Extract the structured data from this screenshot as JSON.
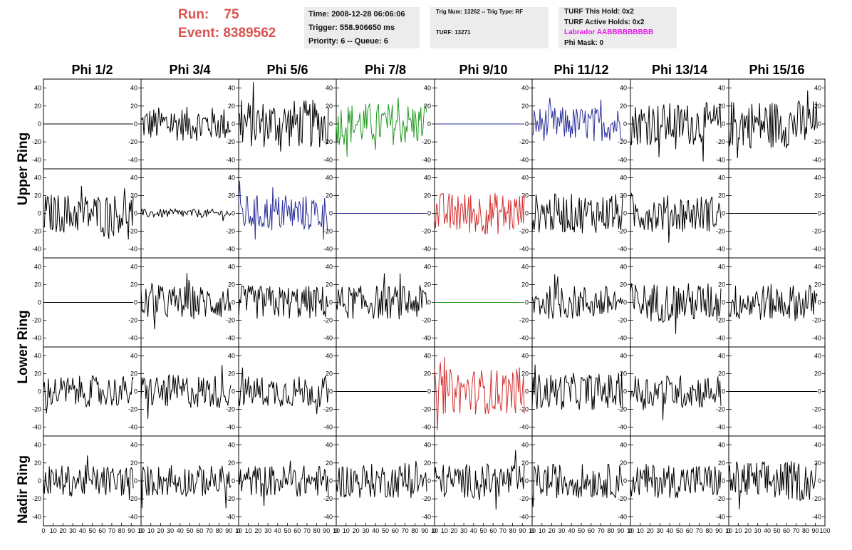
{
  "header": {
    "run_label": "Run:",
    "run_value": "75",
    "event_label": "Event:",
    "event_value": "8389562",
    "time": "Time: 2008-12-28 06:06:06",
    "trigger": "Trigger: 558.906650 ms",
    "priority": "Priority: 6 -- Queue: 6",
    "trig_num": "Trig Num: 13262 -- Trig Type: RF",
    "turf": "TURF: 13271",
    "turf_this_hold": "TURF This Hold: 0x2",
    "turf_active_holds": "TURF Active Holds: 0x2",
    "labrador": "Labrador AABBBBBBBBB",
    "phi_mask": "Phi Mask: 0"
  },
  "chart_data": {
    "type": "line",
    "columns": [
      "Phi 1/2",
      "Phi 3/4",
      "Phi 5/6",
      "Phi 7/8",
      "Phi 9/10",
      "Phi 11/12",
      "Phi 13/14",
      "Phi 15/16"
    ],
    "row_labels": [
      "Upper Ring",
      "Lower Ring",
      "Nadir Ring"
    ],
    "xlim": [
      0,
      100
    ],
    "ylim": [
      -50,
      50
    ],
    "x_ticks": [
      0,
      10,
      20,
      30,
      40,
      50,
      60,
      70,
      80,
      90,
      100
    ],
    "y_ticks": [
      -40,
      -20,
      0,
      20,
      40
    ],
    "x_tick_labels_first": "0 10 20 30 40 50 60 70 80 90 10",
    "x_tick_labels_last": "0 10 20 30 40 50 60 70 80 90 100",
    "colors": {
      "black": "#000000",
      "green": "#1f9a1f",
      "blue": "#2b2f97",
      "red": "#d32f2f"
    },
    "panels": [
      [
        {
          "amp": 0,
          "color": "black"
        },
        {
          "amp": 12,
          "color": "black"
        },
        {
          "amp": 17,
          "color": "black"
        },
        {
          "amp": 15,
          "color": "green"
        },
        {
          "amp": 0,
          "color": "blue"
        },
        {
          "amp": 12,
          "color": "blue"
        },
        {
          "amp": 15,
          "color": "black"
        },
        {
          "amp": 17,
          "color": "black"
        }
      ],
      [
        {
          "amp": 14,
          "color": "black"
        },
        {
          "amp": 3,
          "color": "black"
        },
        {
          "amp": 13,
          "color": "blue"
        },
        {
          "amp": 0,
          "color": "blue"
        },
        {
          "amp": 15,
          "color": "red"
        },
        {
          "amp": 14,
          "color": "black"
        },
        {
          "amp": 13,
          "color": "black"
        },
        {
          "amp": 0,
          "color": "black"
        }
      ],
      [
        {
          "amp": 0,
          "color": "black"
        },
        {
          "amp": 12,
          "color": "black"
        },
        {
          "amp": 12,
          "color": "black"
        },
        {
          "amp": 12,
          "color": "black"
        },
        {
          "amp": 0,
          "color": "green"
        },
        {
          "amp": 12,
          "color": "black"
        },
        {
          "amp": 14,
          "color": "black"
        },
        {
          "amp": 13,
          "color": "black"
        }
      ],
      [
        {
          "amp": 11,
          "color": "black"
        },
        {
          "amp": 12,
          "color": "black"
        },
        {
          "amp": 11,
          "color": "black"
        },
        {
          "amp": 0,
          "color": "black"
        },
        {
          "amp": 16,
          "color": "red"
        },
        {
          "amp": 13,
          "color": "black"
        },
        {
          "amp": 12,
          "color": "black"
        },
        {
          "amp": 0,
          "color": "black"
        }
      ],
      [
        {
          "amp": 11,
          "color": "black"
        },
        {
          "amp": 11,
          "color": "black"
        },
        {
          "amp": 11,
          "color": "black"
        },
        {
          "amp": 12,
          "color": "black"
        },
        {
          "amp": 12,
          "color": "black"
        },
        {
          "amp": 12,
          "color": "black"
        },
        {
          "amp": 12,
          "color": "black"
        },
        {
          "amp": 14,
          "color": "black"
        }
      ]
    ]
  }
}
